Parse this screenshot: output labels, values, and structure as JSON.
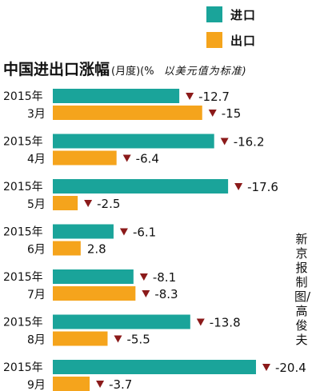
{
  "legend": [
    {
      "label": "进口",
      "color": "#1aa49a"
    },
    {
      "label": "出口",
      "color": "#f5a41c"
    }
  ],
  "title": "中国进出口涨幅",
  "title_unit": "(月度)(%",
  "title_note": "以美元值为标准)",
  "credit": "新京报制图/高俊夫",
  "chart_data": {
    "type": "bar",
    "orientation": "horizontal",
    "title": "中国进出口涨幅",
    "categories": [
      {
        "year": "2015年",
        "month": "3月"
      },
      {
        "year": "2015年",
        "month": "4月"
      },
      {
        "year": "2015年",
        "month": "5月"
      },
      {
        "year": "2015年",
        "month": "6月"
      },
      {
        "year": "2015年",
        "month": "7月"
      },
      {
        "year": "2015年",
        "month": "8月"
      },
      {
        "year": "2015年",
        "month": "9月"
      }
    ],
    "series": [
      {
        "name": "进口",
        "color": "#1aa49a",
        "values": [
          -12.7,
          -16.2,
          -17.6,
          -6.1,
          -8.1,
          -13.8,
          -20.4
        ],
        "labels": [
          "-12.7",
          "-16.2",
          "-17.6",
          "-6.1",
          "-8.1",
          "-13.8",
          "-20.4"
        ]
      },
      {
        "name": "出口",
        "color": "#f5a41c",
        "values": [
          -15,
          -6.4,
          -2.5,
          2.8,
          -8.3,
          -5.5,
          -3.7
        ],
        "labels": [
          "-15",
          "-6.4",
          "-2.5",
          "2.8",
          "-8.3",
          "-5.5",
          "-3.7"
        ]
      }
    ],
    "bar_length": "absolute value",
    "negative_marker": "down-triangle",
    "marker_color": "#8b1a1a",
    "grid": false,
    "legend_position": "top-right"
  }
}
